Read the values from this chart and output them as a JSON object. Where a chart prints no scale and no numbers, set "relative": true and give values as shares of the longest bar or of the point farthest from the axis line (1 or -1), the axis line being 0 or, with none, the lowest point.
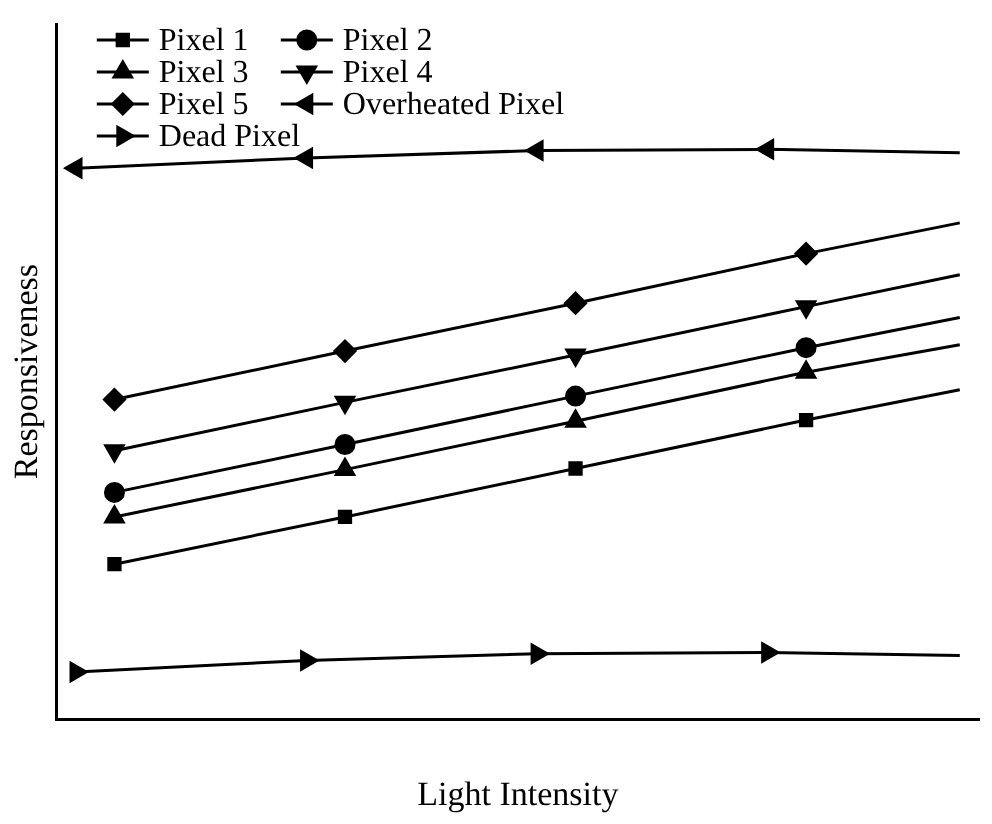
{
  "chart_data": {
    "type": "line",
    "xlabel": "Light Intensity",
    "ylabel": "Responsiveness",
    "relative": true,
    "categories": [
      null,
      null,
      null,
      null,
      null,
      null,
      null,
      null,
      null,
      null,
      null,
      null,
      null,
      null,
      null,
      null,
      null,
      null,
      null,
      null,
      null,
      null,
      null,
      null
    ],
    "legend": "top left",
    "grid": false,
    "line_style": "solid",
    "series": [
      {
        "name": "Pixel 1",
        "color": "#000000",
        "marker": "square",
        "values": [
          null,
          0.272,
          null,
          null,
          null,
          null,
          null,
          0.355,
          null,
          null,
          null,
          null,
          null,
          0.44,
          null,
          null,
          null,
          null,
          null,
          0.525,
          null,
          null,
          null,
          0.578
        ]
      },
      {
        "name": "Pixel 2",
        "color": "#000000",
        "marker": "circle",
        "values": [
          null,
          0.398,
          null,
          null,
          null,
          null,
          null,
          0.482,
          null,
          null,
          null,
          null,
          null,
          0.567,
          null,
          null,
          null,
          null,
          null,
          0.652,
          null,
          null,
          null,
          0.705
        ]
      },
      {
        "name": "Pixel 3",
        "color": "#000000",
        "marker": "triangle",
        "values": [
          null,
          0.355,
          null,
          null,
          null,
          null,
          null,
          0.438,
          null,
          null,
          null,
          null,
          null,
          0.523,
          null,
          null,
          null,
          null,
          null,
          0.609,
          null,
          null,
          null,
          0.657
        ]
      },
      {
        "name": "Pixel 4",
        "color": "#000000",
        "marker": "triangle-down",
        "values": [
          null,
          0.471,
          null,
          null,
          null,
          null,
          null,
          0.556,
          null,
          null,
          null,
          null,
          null,
          0.639,
          null,
          null,
          null,
          null,
          null,
          0.724,
          null,
          null,
          null,
          0.78
        ]
      },
      {
        "name": "Pixel 5",
        "color": "#000000",
        "marker": "diamond",
        "values": [
          null,
          0.561,
          null,
          null,
          null,
          null,
          null,
          0.646,
          null,
          null,
          null,
          null,
          null,
          0.73,
          null,
          null,
          null,
          null,
          null,
          0.817,
          null,
          null,
          null,
          0.871
        ]
      },
      {
        "name": "Overheated Pixel",
        "color": "#000000",
        "marker": "triangle-left",
        "values": [
          0.967,
          null,
          null,
          null,
          null,
          null,
          0.985,
          null,
          null,
          null,
          null,
          null,
          0.998,
          null,
          null,
          null,
          null,
          null,
          1.0,
          null,
          null,
          null,
          null,
          0.994
        ]
      },
      {
        "name": "Dead Pixel",
        "color": "#000000",
        "marker": "triangle-right",
        "values": [
          0.083,
          null,
          null,
          null,
          null,
          null,
          0.103,
          null,
          null,
          null,
          null,
          null,
          0.115,
          null,
          null,
          null,
          null,
          null,
          0.117,
          null,
          null,
          null,
          null,
          0.112
        ]
      }
    ]
  }
}
